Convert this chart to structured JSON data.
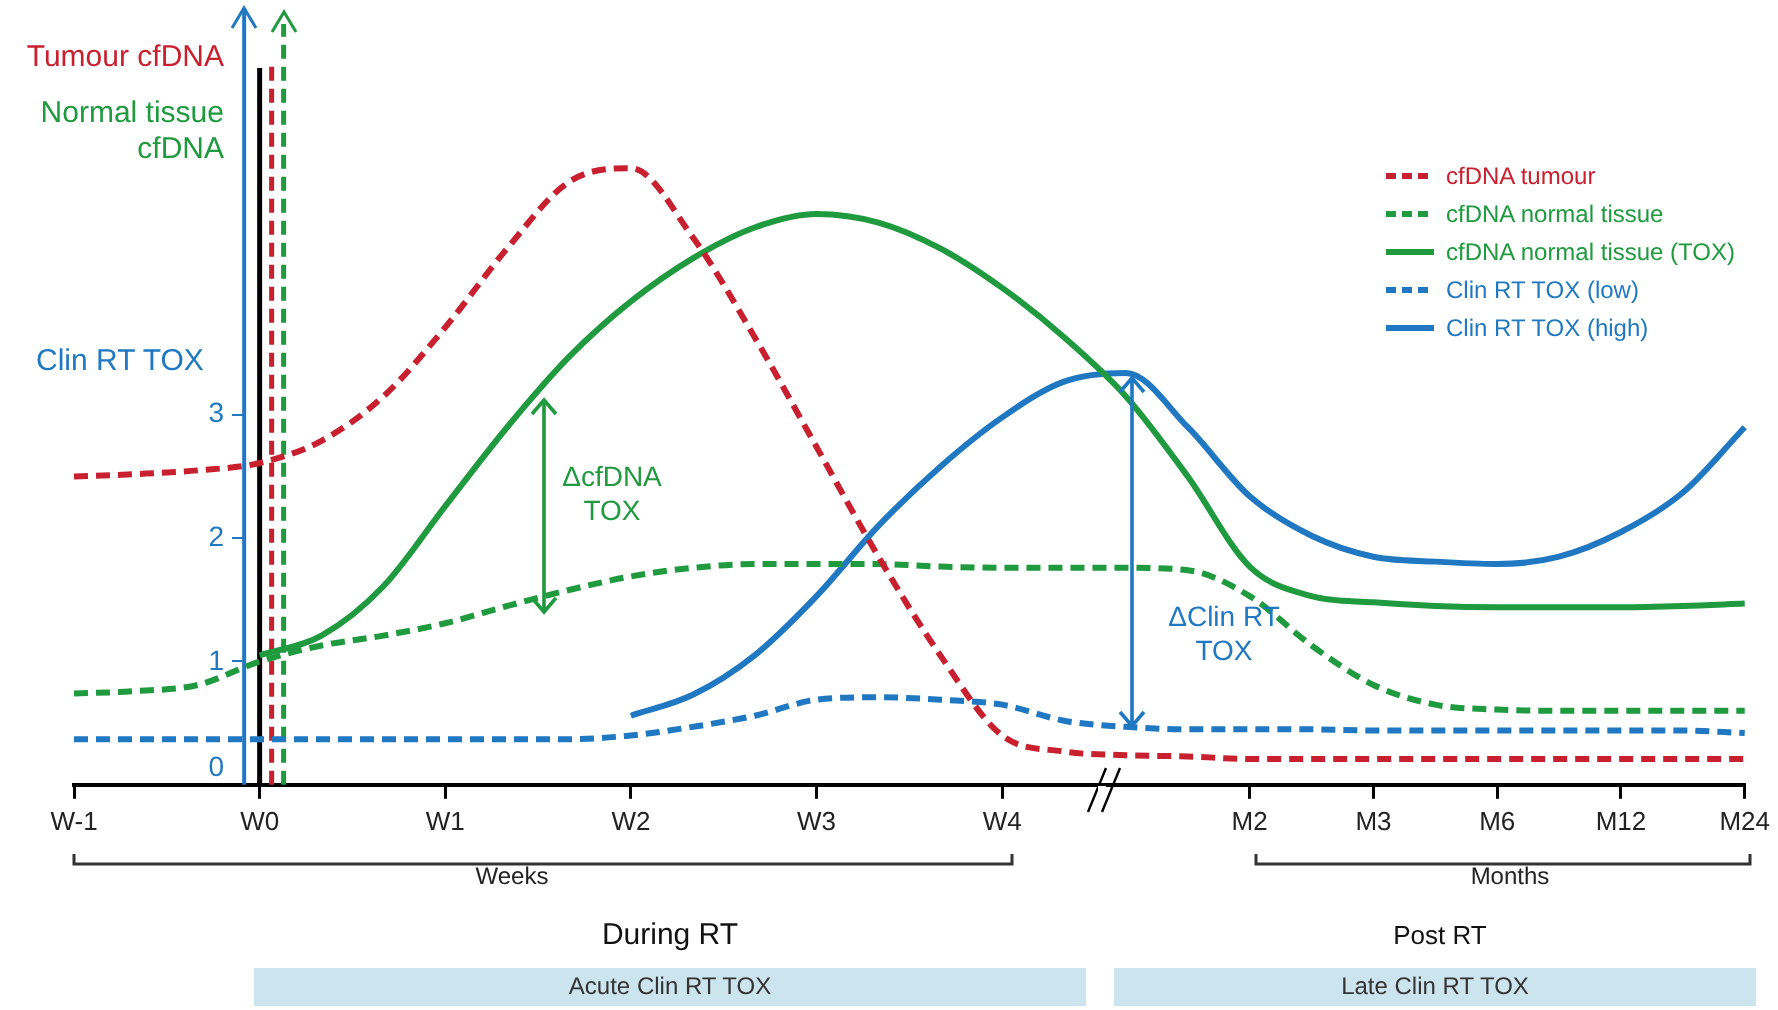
{
  "chart_data": {
    "type": "line",
    "ylabel": "Clin RT TOX",
    "categories": [
      "W-1",
      null,
      null,
      "W0",
      null,
      null,
      "W1",
      null,
      null,
      "W2",
      null,
      null,
      "W3",
      null,
      null,
      "W4",
      null,
      null,
      null,
      "M2",
      null,
      "M3",
      null,
      "M6",
      null,
      "M12",
      null,
      "M24"
    ],
    "ylim": [
      0,
      6.3
    ],
    "yticks": [
      0,
      1,
      2,
      3
    ],
    "grid": false,
    "marker": "none",
    "legend": "top right",
    "series": [
      {
        "name": "cfDNA tumour",
        "color": "#c8202f",
        "line_style": "dashed",
        "values": [
          2.5,
          2.52,
          2.55,
          2.61,
          2.79,
          3.15,
          3.71,
          4.35,
          4.89,
          5.0,
          4.44,
          3.63,
          2.74,
          1.85,
          1.05,
          0.4,
          0.27,
          0.24,
          0.23,
          0.21,
          0.21,
          0.21,
          0.21,
          0.21,
          0.21,
          0.21,
          0.21,
          0.21
        ]
      },
      {
        "name": "cfDNA normal tissue",
        "color": "#1f9a3e",
        "line_style": "dashed",
        "values": [
          0.74,
          0.76,
          0.81,
          1.0,
          1.13,
          1.21,
          1.31,
          1.45,
          1.58,
          1.69,
          1.76,
          1.79,
          1.79,
          1.79,
          1.77,
          1.76,
          1.76,
          1.76,
          1.74,
          1.53,
          1.13,
          0.81,
          0.65,
          0.61,
          0.6,
          0.6,
          0.6,
          0.6
        ]
      },
      {
        "name": "cfDNA normal tissue (TOX)",
        "color": "#1f9a3e",
        "line_style": "solid",
        "values": [
          null,
          null,
          null,
          1.05,
          1.21,
          1.61,
          2.26,
          2.9,
          3.47,
          3.92,
          4.27,
          4.52,
          4.63,
          4.56,
          4.35,
          4.03,
          3.63,
          3.15,
          2.5,
          1.77,
          1.53,
          1.48,
          1.45,
          1.44,
          1.44,
          1.44,
          1.45,
          1.47
        ]
      },
      {
        "name": "Clin RT TOX (low)",
        "color": "#1f78c1",
        "line_style": "dashed",
        "values": [
          0.37,
          0.37,
          0.37,
          0.37,
          0.37,
          0.37,
          0.37,
          0.37,
          0.37,
          0.4,
          0.47,
          0.56,
          0.69,
          0.71,
          0.69,
          0.65,
          0.52,
          0.47,
          0.45,
          0.45,
          0.45,
          0.44,
          0.44,
          0.44,
          0.44,
          0.44,
          0.44,
          0.42
        ]
      },
      {
        "name": "Clin RT TOX (high)",
        "color": "#1f78c1",
        "line_style": "solid",
        "values": [
          null,
          null,
          null,
          null,
          null,
          null,
          null,
          null,
          null,
          0.56,
          0.73,
          1.05,
          1.53,
          2.1,
          2.58,
          2.98,
          3.27,
          3.34,
          2.9,
          2.34,
          2.02,
          1.85,
          1.81,
          1.79,
          1.85,
          2.05,
          2.37,
          2.9
        ]
      }
    ],
    "ref_lines": [
      {
        "axis": "x",
        "value": "W0",
        "color": "#c8202f",
        "line_style": "dashed"
      },
      {
        "axis": "x",
        "value": "W0",
        "color": "#1f9a3e",
        "line_style": "dashed"
      },
      {
        "axis": "x",
        "value": "W0",
        "color": "#000000",
        "line_style": "solid"
      }
    ],
    "annotations": [
      "Tumour cfDNA",
      "Normal tissue cfDNA",
      "ΔcfDNA TOX",
      "ΔClin RT TOX",
      "Weeks",
      "Months",
      "During RT",
      "Post RT",
      "Acute Clin RT TOX",
      "Late Clin RT TOX"
    ]
  }
}
